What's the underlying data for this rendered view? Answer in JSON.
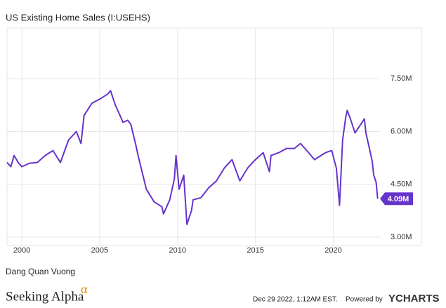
{
  "chart_data": {
    "type": "line",
    "title": "US Existing Home Sales (I:USEHS)",
    "x": [
      1999.05,
      1999.3,
      1999.5,
      1999.8,
      2000.0,
      2000.5,
      2001.0,
      2001.5,
      2002.0,
      2002.48,
      2003.0,
      2003.5,
      2003.8,
      2004.0,
      2004.5,
      2005.0,
      2005.5,
      2005.7,
      2006.0,
      2006.5,
      2006.8,
      2007.0,
      2007.3,
      2007.5,
      2008.0,
      2008.5,
      2009.0,
      2009.1,
      2009.5,
      2009.8,
      2009.9,
      2010.1,
      2010.4,
      2010.6,
      2010.9,
      2011.0,
      2011.5,
      2012.0,
      2012.5,
      2013.0,
      2013.5,
      2013.9,
      2014.0,
      2014.5,
      2015.0,
      2015.5,
      2015.9,
      2016.0,
      2016.5,
      2017.0,
      2017.5,
      2017.9,
      2018.3,
      2018.8,
      2019.0,
      2019.5,
      2019.9,
      2020.2,
      2020.4,
      2020.6,
      2020.8,
      2020.9,
      2021.1,
      2021.4,
      2021.7,
      2022.0,
      2022.1,
      2022.3,
      2022.5,
      2022.6,
      2022.75,
      2022.85
    ],
    "series": [
      {
        "name": "US Existing Home Sales",
        "color": "#6633cc",
        "values": [
          5.12,
          5.0,
          5.32,
          5.1,
          5.0,
          5.1,
          5.12,
          5.32,
          5.46,
          5.12,
          5.76,
          6.0,
          5.66,
          6.46,
          6.8,
          6.92,
          7.06,
          7.16,
          6.76,
          6.26,
          6.32,
          6.2,
          5.66,
          5.26,
          4.36,
          4.0,
          3.86,
          3.66,
          4.06,
          4.66,
          5.32,
          4.36,
          4.76,
          3.36,
          3.76,
          4.06,
          4.12,
          4.4,
          4.6,
          4.96,
          5.2,
          4.72,
          4.6,
          4.96,
          5.2,
          5.4,
          4.86,
          5.32,
          5.4,
          5.52,
          5.52,
          5.66,
          5.46,
          5.2,
          5.26,
          5.4,
          5.46,
          4.96,
          3.9,
          5.76,
          6.4,
          6.6,
          6.36,
          5.96,
          6.16,
          6.36,
          5.96,
          5.56,
          5.16,
          4.76,
          4.56,
          4.09
        ]
      }
    ],
    "last_value_label": "4.09M",
    "xlim": [
      1999.05,
      2023.0
    ],
    "xticks": [
      2000,
      2005,
      2010,
      2015,
      2020
    ],
    "ylim": [
      2.76,
      8.94
    ],
    "yticks": [
      {
        "value": 3.0,
        "label": "3.00M"
      },
      {
        "value": 4.5,
        "label": "4.50M"
      },
      {
        "value": 6.0,
        "label": "6.00M"
      },
      {
        "value": 7.5,
        "label": "7.50M"
      }
    ],
    "grid": true
  },
  "footer": {
    "author": "Dang Quan Vuong",
    "brand": "Seeking Alpha",
    "brand_symbol": "α",
    "timestamp": "Dec 29 2022, 1:12AM EST.",
    "powered_by": "Powered by",
    "provider": "YCHARTS"
  }
}
